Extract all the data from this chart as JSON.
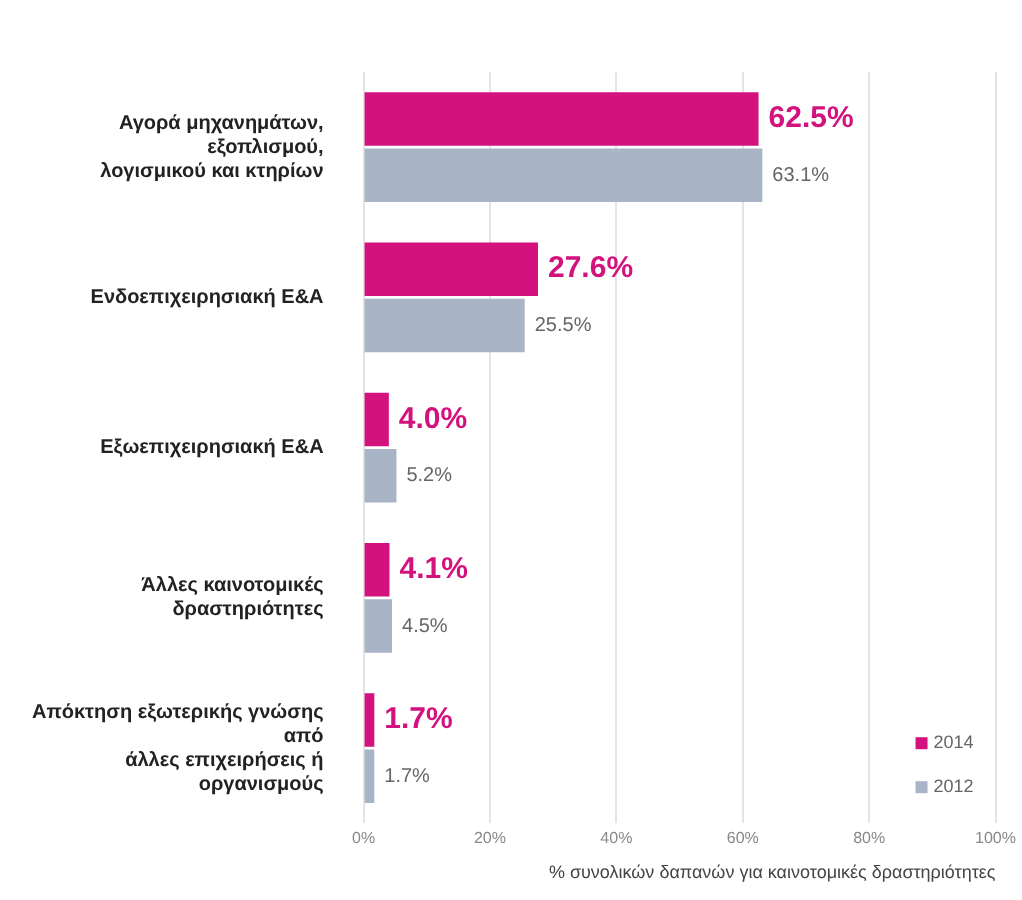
{
  "chart_data": {
    "type": "bar",
    "orientation": "horizontal",
    "categories": [
      "Αγορά μηχανημάτων,\nεξοπλισμού,\nλογισμικού και κτηρίων",
      "Ενδοεπιχειρησιακή Ε&Α",
      "Εξωεπιχειρησιακή Ε&Α",
      "Άλλες καινοτομικές\nδραστηριότητες",
      "Απόκτηση εξωτερικής γνώσης\nαπό\nάλλες επιχειρήσεις ή\nοργανισμούς"
    ],
    "series": [
      {
        "name": "2014",
        "color": "#d4127e",
        "values": [
          62.5,
          27.6,
          4.0,
          4.1,
          1.7
        ],
        "value_labels": [
          "62.5%",
          "27.6%",
          "4.0%",
          "4.1%",
          "1.7%"
        ]
      },
      {
        "name": "2012",
        "color": "#a9b4c6",
        "values": [
          63.1,
          25.5,
          5.2,
          4.5,
          1.7
        ],
        "value_labels": [
          "63.1%",
          "25.5%",
          "5.2%",
          "4.5%",
          "1.7%"
        ]
      }
    ],
    "xlim": [
      0,
      100
    ],
    "xticks": [
      {
        "value": 0,
        "label": "0%"
      },
      {
        "value": 20,
        "label": "20%"
      },
      {
        "value": 40,
        "label": "40%"
      },
      {
        "value": 60,
        "label": "60%"
      },
      {
        "value": 80,
        "label": "80%"
      },
      {
        "value": 100,
        "label": "100%"
      }
    ],
    "xlabel": "% συνολικών δαπανών για καινοτομικές δραστηριότητες",
    "grid": "x",
    "legend": "bottom right"
  }
}
